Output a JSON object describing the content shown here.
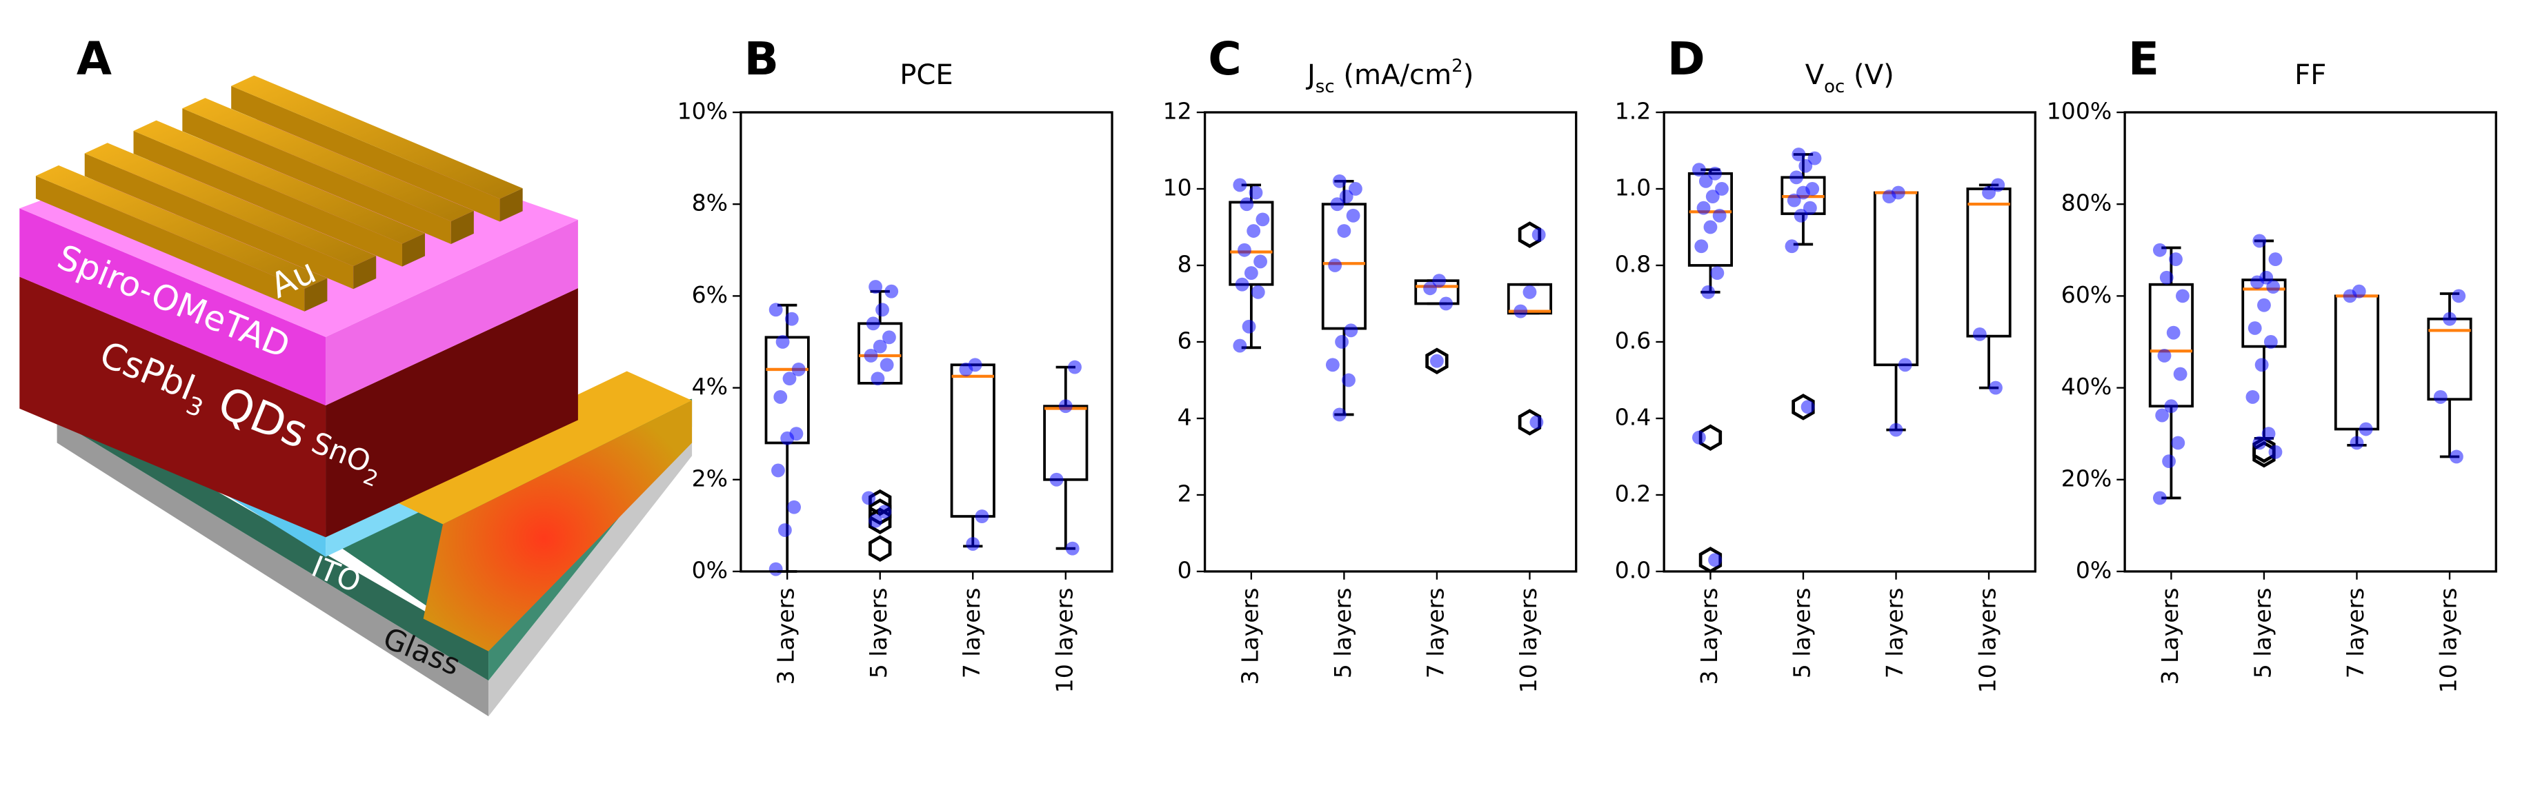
{
  "schematic": {
    "panel": "A",
    "labels": [
      [
        {
          "text": "Au"
        }
      ],
      [
        {
          "text": "Spiro-OMeTAD"
        }
      ],
      [
        {
          "text": "CsPbI"
        },
        {
          "text": "3",
          "shift": "sub"
        },
        {
          "text": " QDs"
        }
      ],
      [
        {
          "text": "SnO"
        },
        {
          "text": "2",
          "shift": "sub"
        }
      ],
      [
        {
          "text": "ITO"
        }
      ],
      [
        {
          "text": "Glass"
        }
      ]
    ]
  },
  "chart_data": [
    {
      "type": "box",
      "panel": "B",
      "title": [
        {
          "text": "PCE"
        }
      ],
      "categories": [
        "3 Layers",
        "5 layers",
        "7 layers",
        "10 layers"
      ],
      "ylim": [
        0,
        10
      ],
      "yticks": [
        {
          "value": 0,
          "label": "0%"
        },
        {
          "value": 2,
          "label": "2%"
        },
        {
          "value": 4,
          "label": "4%"
        },
        {
          "value": 6,
          "label": "6%"
        },
        {
          "value": 8,
          "label": "8%"
        },
        {
          "value": 10,
          "label": "10%"
        }
      ],
      "box_color": "#000000",
      "median_color": "#ff7f0e",
      "point_color": "#0000ff",
      "boxes": [
        {
          "whisker_low": 0,
          "q1": 2.8,
          "median": 4.4,
          "q3": 5.1,
          "whisker_high": 5.8,
          "outliers": [],
          "points": [
            5.7,
            5.5,
            5.0,
            4.4,
            4.2,
            3.8,
            3.0,
            2.9,
            2.2,
            1.4,
            0.9,
            0.05
          ]
        },
        {
          "whisker_low": 4.1,
          "q1": 4.1,
          "median": 4.7,
          "q3": 5.4,
          "whisker_high": 6.1,
          "outliers": [
            1.5,
            1.3,
            1.1,
            0.5
          ],
          "points": [
            6.2,
            6.1,
            5.7,
            5.4,
            5.1,
            4.9,
            4.7,
            4.5,
            4.2,
            1.6,
            1.3,
            1.1
          ]
        },
        {
          "whisker_low": 0.55,
          "q1": 1.2,
          "median": 4.25,
          "q3": 4.5,
          "whisker_high": 4.5,
          "outliers": [],
          "points": [
            4.5,
            4.4,
            1.2,
            0.6
          ]
        },
        {
          "whisker_low": 0.5,
          "q1": 2.0,
          "median": 3.55,
          "q3": 3.6,
          "whisker_high": 4.45,
          "outliers": [],
          "points": [
            4.45,
            3.6,
            2.0,
            0.5
          ]
        }
      ]
    },
    {
      "type": "box",
      "panel": "C",
      "title": [
        {
          "text": "J"
        },
        {
          "text": "sc",
          "shift": "sub"
        },
        {
          "text": " (mA/cm"
        },
        {
          "text": "2",
          "shift": "super"
        },
        {
          "text": ")"
        }
      ],
      "categories": [
        "3 Layers",
        "5 layers",
        "7 layers",
        "10 layers"
      ],
      "ylim": [
        0,
        12
      ],
      "yticks": [
        0,
        2,
        4,
        6,
        8,
        10,
        12
      ],
      "box_color": "#000000",
      "median_color": "#ff7f0e",
      "point_color": "#0000ff",
      "boxes": [
        {
          "whisker_low": 5.85,
          "q1": 7.5,
          "median": 8.35,
          "q3": 9.65,
          "whisker_high": 10.1,
          "outliers": [],
          "points": [
            10.1,
            9.9,
            9.6,
            9.2,
            8.9,
            8.4,
            8.1,
            7.8,
            7.5,
            7.3,
            6.4,
            5.9
          ]
        },
        {
          "whisker_low": 4.1,
          "q1": 6.35,
          "median": 8.05,
          "q3": 9.6,
          "whisker_high": 10.2,
          "outliers": [],
          "points": [
            10.2,
            10.0,
            9.8,
            9.6,
            9.3,
            8.9,
            8.0,
            6.3,
            6.0,
            5.4,
            5.0,
            4.1
          ]
        },
        {
          "whisker_low": 7.0,
          "q1": 7.0,
          "median": 7.45,
          "q3": 7.6,
          "whisker_high": 7.6,
          "outliers": [
            5.5
          ],
          "points": [
            7.6,
            7.4,
            7.0,
            5.5
          ]
        },
        {
          "whisker_low": 6.75,
          "q1": 6.75,
          "median": 6.8,
          "q3": 7.5,
          "whisker_high": 7.5,
          "outliers": [
            8.8,
            3.9
          ],
          "points": [
            8.8,
            7.3,
            6.8,
            3.9
          ]
        }
      ]
    },
    {
      "type": "box",
      "panel": "D",
      "title": [
        {
          "text": "V"
        },
        {
          "text": "oc",
          "shift": "sub"
        },
        {
          "text": " (V)"
        }
      ],
      "categories": [
        "3 Layers",
        "5 layers",
        "7 layers",
        "10 layers"
      ],
      "ylim": [
        0,
        1.2
      ],
      "yticks": [
        {
          "value": 0,
          "label": "0.0"
        },
        0.2,
        0.4,
        0.6,
        0.8,
        {
          "value": 1,
          "label": "1.0"
        },
        1.2
      ],
      "box_color": "#000000",
      "median_color": "#ff7f0e",
      "point_color": "#0000ff",
      "boxes": [
        {
          "whisker_low": 0.73,
          "q1": 0.8,
          "median": 0.94,
          "q3": 1.04,
          "whisker_high": 1.05,
          "outliers": [
            0.35,
            0.03
          ],
          "points": [
            1.05,
            1.04,
            1.02,
            1.0,
            0.98,
            0.95,
            0.93,
            0.9,
            0.85,
            0.78,
            0.73,
            0.35,
            0.03
          ]
        },
        {
          "whisker_low": 0.855,
          "q1": 0.935,
          "median": 0.98,
          "q3": 1.03,
          "whisker_high": 1.09,
          "outliers": [
            0.43
          ],
          "points": [
            1.09,
            1.08,
            1.06,
            1.03,
            1.0,
            0.99,
            0.97,
            0.95,
            0.93,
            0.85,
            0.43
          ]
        },
        {
          "whisker_low": 0.37,
          "q1": 0.54,
          "median": 0.99,
          "q3": 0.99,
          "whisker_high": 0.99,
          "outliers": [],
          "points": [
            0.99,
            0.98,
            0.54,
            0.37
          ]
        },
        {
          "whisker_low": 0.48,
          "q1": 0.615,
          "median": 0.96,
          "q3": 1.0,
          "whisker_high": 1.01,
          "outliers": [],
          "points": [
            1.01,
            0.99,
            0.62,
            0.48
          ]
        }
      ]
    },
    {
      "type": "box",
      "panel": "E",
      "title": [
        {
          "text": "FF"
        }
      ],
      "categories": [
        "3 Layers",
        "5 layers",
        "7 layers",
        "10 layers"
      ],
      "ylim": [
        0,
        100
      ],
      "yticks": [
        {
          "value": 0,
          "label": "0%"
        },
        {
          "value": 20,
          "label": "20%"
        },
        {
          "value": 40,
          "label": "40%"
        },
        {
          "value": 60,
          "label": "60%"
        },
        {
          "value": 80,
          "label": "80%"
        },
        {
          "value": 100,
          "label": "100%"
        }
      ],
      "box_color": "#000000",
      "median_color": "#ff7f0e",
      "point_color": "#0000ff",
      "boxes": [
        {
          "whisker_low": 16,
          "q1": 36,
          "median": 48,
          "q3": 62.5,
          "whisker_high": 70.5,
          "outliers": [],
          "points": [
            70,
            68,
            64,
            60,
            52,
            47,
            43,
            36,
            34,
            28,
            24,
            16
          ]
        },
        {
          "whisker_low": 29,
          "q1": 49,
          "median": 61.5,
          "q3": 63.5,
          "whisker_high": 72,
          "outliers": [
            26.5,
            25.5
          ],
          "points": [
            72,
            68,
            64,
            63,
            62,
            58,
            53,
            50,
            45,
            38,
            30,
            28,
            26
          ]
        },
        {
          "whisker_low": 27.5,
          "q1": 31,
          "median": 60,
          "q3": 60,
          "whisker_high": 60,
          "outliers": [],
          "points": [
            61,
            60,
            31,
            28
          ]
        },
        {
          "whisker_low": 25,
          "q1": 37.5,
          "median": 52.5,
          "q3": 55,
          "whisker_high": 60.5,
          "outliers": [],
          "points": [
            60,
            55,
            38,
            25
          ]
        }
      ]
    }
  ]
}
